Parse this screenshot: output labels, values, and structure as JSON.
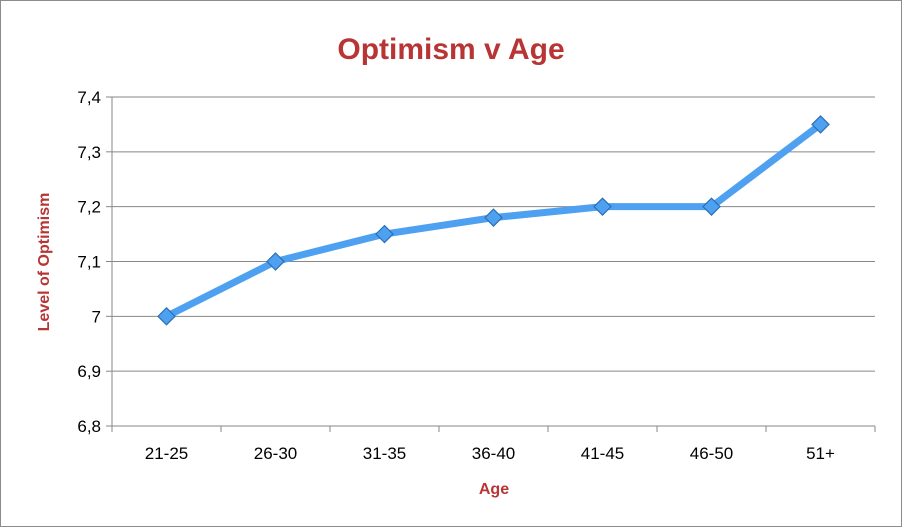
{
  "chart_data": {
    "type": "line",
    "title": "Optimism v Age",
    "xlabel": "Age",
    "ylabel": "Level of Optimism",
    "categories": [
      "21-25",
      "26-30",
      "31-35",
      "36-40",
      "41-45",
      "46-50",
      "51+"
    ],
    "series": [
      {
        "values": [
          7.0,
          7.1,
          7.15,
          7.18,
          7.2,
          7.2,
          7.35
        ]
      }
    ],
    "ylim": [
      6.8,
      7.4
    ],
    "yticks": [
      "6,8",
      "6,9",
      "7",
      "7,1",
      "7,2",
      "7,3",
      "7,4"
    ],
    "ytick_values": [
      6.8,
      6.9,
      7.0,
      7.1,
      7.2,
      7.3,
      7.4
    ],
    "grid": "horizontal",
    "legend": "none",
    "colors": {
      "title": "#b83535",
      "axis_title": "#b83535",
      "line": "#4da1f0",
      "marker_fill": "#4da1f0",
      "marker_stroke": "#2b6fb5",
      "grid": "#878787",
      "axis": "#878787"
    }
  }
}
